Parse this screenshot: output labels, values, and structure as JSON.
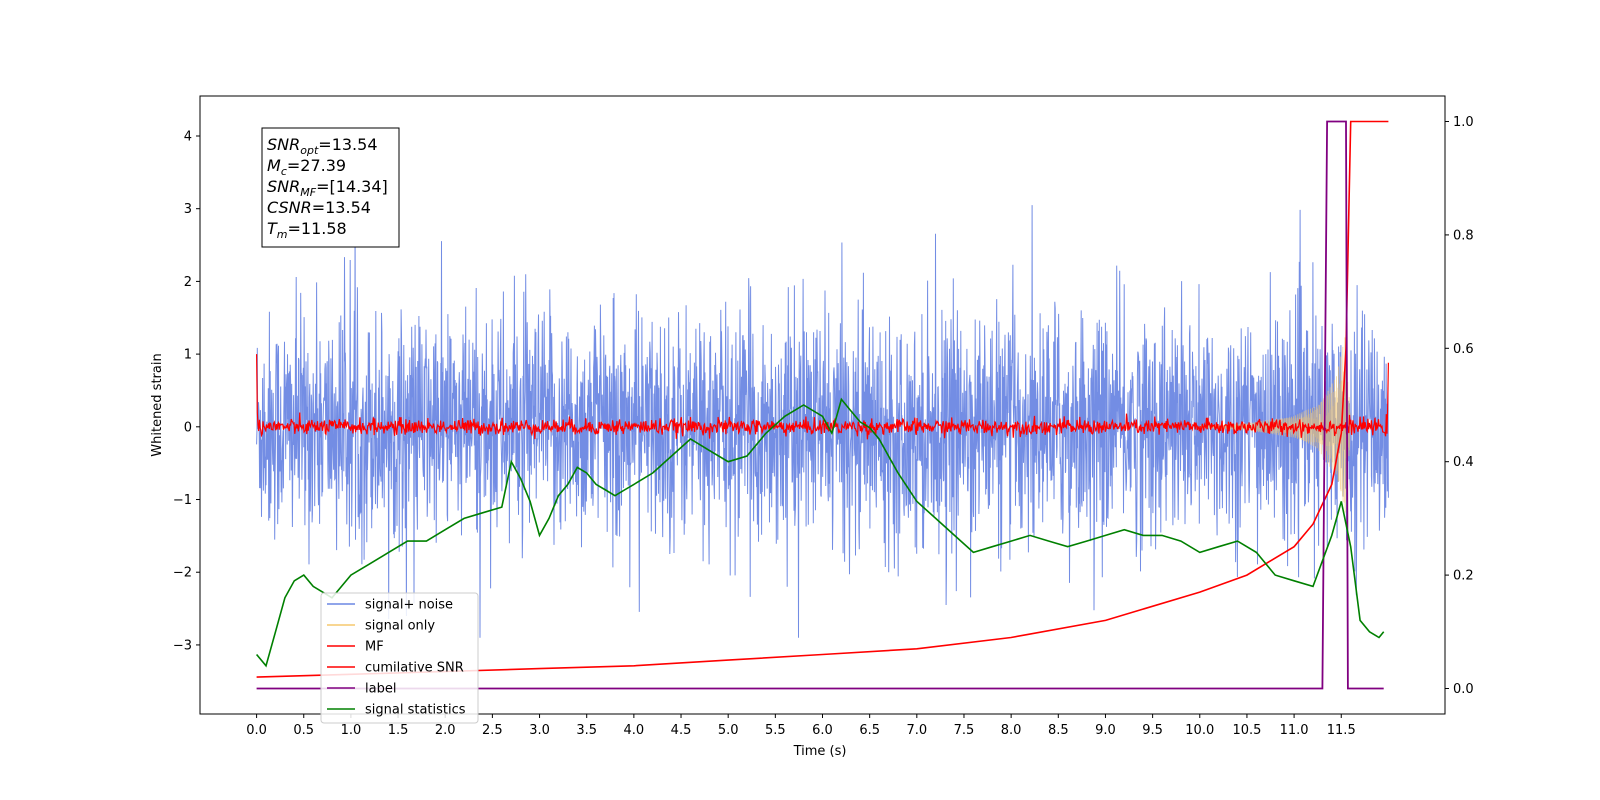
{
  "chart_data": {
    "type": "line",
    "xlabel": "Time (s)",
    "ylabel": "Whitened strain",
    "xlim": [
      -0.6,
      12.6
    ],
    "ylim": [
      -3.95,
      4.55
    ],
    "y2lim": [
      -0.045,
      1.045
    ],
    "xticks": [
      0.0,
      0.5,
      1.0,
      1.5,
      2.0,
      2.5,
      3.0,
      3.5,
      4.0,
      4.5,
      5.0,
      5.5,
      6.0,
      6.5,
      7.0,
      7.5,
      8.0,
      8.5,
      9.0,
      9.5,
      10.0,
      10.5,
      11.0,
      11.5
    ],
    "xtick_labels": [
      "0.0",
      "0.5",
      "1.0",
      "1.5",
      "2.0",
      "2.5",
      "3.0",
      "3.5",
      "4.0",
      "4.5",
      "5.0",
      "5.5",
      "6.0",
      "6.5",
      "7.0",
      "7.5",
      "8.0",
      "8.5",
      "9.0",
      "9.5",
      "10.0",
      "10.5",
      "11.0",
      "11.5"
    ],
    "yticks": [
      -3,
      -2,
      -1,
      0,
      1,
      2,
      3,
      4
    ],
    "ytick_labels": [
      "−3",
      "−2",
      "−1",
      "0",
      "1",
      "2",
      "3",
      "4"
    ],
    "y2ticks": [
      0.0,
      0.2,
      0.4,
      0.6,
      0.8,
      1.0
    ],
    "y2tick_labels": [
      "0.0",
      "0.2",
      "0.4",
      "0.6",
      "0.8",
      "1.0"
    ],
    "series": [
      {
        "name": "signal+ noise",
        "color": "#6b87e3",
        "axis": "left",
        "description_values": "noise band approx -2 to 2 with spikes up to ±3, t from 0 to 12"
      },
      {
        "name": "signal only",
        "color": "#f5c86e",
        "axis": "left",
        "x": [
          10.0,
          10.5,
          11.0,
          11.25,
          11.45,
          11.55,
          11.6
        ],
        "envelope": [
          0.02,
          0.05,
          0.15,
          0.3,
          0.7,
          1.3,
          0.0
        ]
      },
      {
        "name": "MF",
        "color": "#ff0000",
        "axis": "left",
        "description_values": "noisy band around 0 of width about ±0.1; starts at 1.0 at t=0, ends near 0.85 at t=12"
      },
      {
        "name": "cumilative SNR",
        "color": "#ff0000",
        "axis": "right",
        "x": [
          0.0,
          1.0,
          2.0,
          3.0,
          4.0,
          5.0,
          6.0,
          7.0,
          8.0,
          9.0,
          10.0,
          10.5,
          11.0,
          11.2,
          11.4,
          11.5,
          11.55,
          11.6,
          12.0
        ],
        "values": [
          0.02,
          0.025,
          0.03,
          0.035,
          0.04,
          0.05,
          0.06,
          0.07,
          0.09,
          0.12,
          0.17,
          0.2,
          0.25,
          0.29,
          0.36,
          0.45,
          0.6,
          1.0,
          1.0
        ]
      },
      {
        "name": "label",
        "color": "#800080",
        "axis": "right",
        "x": [
          0.0,
          11.3,
          11.35,
          11.55,
          11.57,
          11.8,
          11.95
        ],
        "values": [
          0.0,
          0.0,
          1.0,
          1.0,
          0.0,
          0.0,
          0.0
        ]
      },
      {
        "name": "signal statistics",
        "color": "#008000",
        "axis": "right",
        "x": [
          0.0,
          0.1,
          0.2,
          0.3,
          0.4,
          0.5,
          0.6,
          0.7,
          0.8,
          0.9,
          1.0,
          1.2,
          1.4,
          1.6,
          1.8,
          2.0,
          2.2,
          2.4,
          2.6,
          2.7,
          2.8,
          2.9,
          3.0,
          3.1,
          3.2,
          3.3,
          3.4,
          3.5,
          3.6,
          3.7,
          3.8,
          3.9,
          4.0,
          4.2,
          4.4,
          4.6,
          4.8,
          5.0,
          5.2,
          5.4,
          5.6,
          5.8,
          6.0,
          6.1,
          6.2,
          6.3,
          6.4,
          6.5,
          6.6,
          6.8,
          7.0,
          7.2,
          7.4,
          7.6,
          7.8,
          8.0,
          8.2,
          8.4,
          8.6,
          8.8,
          9.0,
          9.2,
          9.4,
          9.6,
          9.8,
          10.0,
          10.2,
          10.4,
          10.6,
          10.8,
          11.0,
          11.2,
          11.4,
          11.5,
          11.6,
          11.7,
          11.8,
          11.9,
          11.95
        ],
        "values": [
          0.06,
          0.04,
          0.1,
          0.16,
          0.19,
          0.2,
          0.18,
          0.17,
          0.16,
          0.18,
          0.2,
          0.22,
          0.24,
          0.26,
          0.26,
          0.28,
          0.3,
          0.31,
          0.32,
          0.4,
          0.37,
          0.33,
          0.27,
          0.3,
          0.34,
          0.36,
          0.39,
          0.38,
          0.36,
          0.35,
          0.34,
          0.35,
          0.36,
          0.38,
          0.41,
          0.44,
          0.42,
          0.4,
          0.41,
          0.45,
          0.48,
          0.5,
          0.48,
          0.45,
          0.51,
          0.49,
          0.47,
          0.46,
          0.44,
          0.38,
          0.33,
          0.3,
          0.27,
          0.24,
          0.25,
          0.26,
          0.27,
          0.26,
          0.25,
          0.26,
          0.27,
          0.28,
          0.27,
          0.27,
          0.26,
          0.24,
          0.25,
          0.26,
          0.24,
          0.2,
          0.19,
          0.18,
          0.27,
          0.33,
          0.25,
          0.12,
          0.1,
          0.09,
          0.1
        ]
      }
    ],
    "annotation_lines": [
      {
        "base": "SNR",
        "sub": "opt",
        "rest": "=13.54"
      },
      {
        "base": "M",
        "sub": "c",
        "rest": "=27.39"
      },
      {
        "base": "SNR",
        "sub": "MF",
        "rest": "=[14.34]"
      },
      {
        "base": "CSNR",
        "sub": "",
        "rest": "=13.54"
      },
      {
        "base": "T",
        "sub": "m",
        "rest": "=11.58"
      }
    ],
    "legend_placement": "lower-left",
    "legend": [
      "signal+ noise",
      "signal only",
      "MF",
      "cumilative SNR",
      "label",
      "signal statistics"
    ]
  }
}
